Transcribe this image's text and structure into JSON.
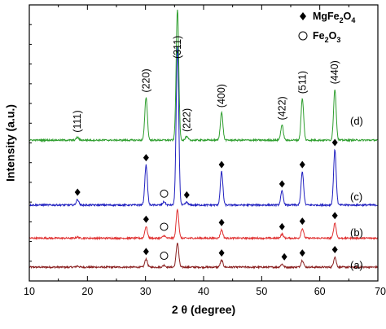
{
  "chart_data": {
    "type": "line",
    "xlabel": "2 θ (degree)",
    "ylabel": "Intensity (a.u.)",
    "xlim": [
      10,
      70
    ],
    "x_ticks": [
      "10",
      "20",
      "30",
      "40",
      "50",
      "60",
      "70"
    ],
    "grid": false,
    "legend": {
      "placement": "top-right",
      "items": [
        {
          "marker": "filled-diamond",
          "label": "MgFe",
          "sub1": "2",
          "mid": "O",
          "sub2": "4"
        },
        {
          "marker": "open-circle",
          "label": "Fe",
          "sub1": "2",
          "mid": "O",
          "sub2": "3"
        }
      ]
    },
    "series": [
      {
        "name": "(a)",
        "color": "#8a1f1f",
        "baseline": 0.05,
        "peaks": [
          {
            "x": 18.3,
            "h": 0.004
          },
          {
            "x": 30.1,
            "h": 0.03
          },
          {
            "x": 33.2,
            "h": 0.007
          },
          {
            "x": 35.5,
            "h": 0.088
          },
          {
            "x": 43.1,
            "h": 0.025
          },
          {
            "x": 53.5,
            "h": 0.011
          },
          {
            "x": 57.0,
            "h": 0.025
          },
          {
            "x": 62.6,
            "h": 0.037
          }
        ],
        "markers": [
          {
            "type": "diamond",
            "x": 30.1
          },
          {
            "type": "circle",
            "x": 33.2
          },
          {
            "type": "diamond",
            "x": 43.1
          },
          {
            "type": "diamond",
            "x": 53.9
          },
          {
            "type": "diamond",
            "x": 57.0
          },
          {
            "type": "diamond",
            "x": 62.6
          }
        ]
      },
      {
        "name": "(b)",
        "color": "#e03030",
        "baseline": 0.155,
        "peaks": [
          {
            "x": 18.3,
            "h": 0.004
          },
          {
            "x": 30.1,
            "h": 0.042
          },
          {
            "x": 33.2,
            "h": 0.009
          },
          {
            "x": 35.5,
            "h": 0.105
          },
          {
            "x": 43.1,
            "h": 0.03
          },
          {
            "x": 53.5,
            "h": 0.015
          },
          {
            "x": 57.0,
            "h": 0.035
          },
          {
            "x": 62.6,
            "h": 0.055
          }
        ],
        "markers": [
          {
            "type": "diamond",
            "x": 30.1
          },
          {
            "type": "circle",
            "x": 33.2
          },
          {
            "type": "diamond",
            "x": 43.1
          },
          {
            "type": "diamond",
            "x": 53.5
          },
          {
            "type": "diamond",
            "x": 57.0
          },
          {
            "type": "diamond",
            "x": 62.6
          }
        ]
      },
      {
        "name": "(c)",
        "color": "#2020c0",
        "baseline": 0.275,
        "peaks": [
          {
            "x": 18.3,
            "h": 0.02
          },
          {
            "x": 30.1,
            "h": 0.145
          },
          {
            "x": 33.2,
            "h": 0.012
          },
          {
            "x": 35.5,
            "h": 0.575
          },
          {
            "x": 37.1,
            "h": 0.01
          },
          {
            "x": 43.1,
            "h": 0.12
          },
          {
            "x": 53.5,
            "h": 0.05
          },
          {
            "x": 57.0,
            "h": 0.12
          },
          {
            "x": 62.6,
            "h": 0.2
          }
        ],
        "markers": [
          {
            "type": "diamond",
            "x": 18.3
          },
          {
            "type": "diamond",
            "x": 30.1
          },
          {
            "type": "circle",
            "x": 33.2
          },
          {
            "type": "diamond",
            "x": 37.1
          },
          {
            "type": "diamond",
            "x": 43.1
          },
          {
            "type": "diamond",
            "x": 53.5
          },
          {
            "type": "diamond",
            "x": 57.0
          },
          {
            "type": "diamond",
            "x": 62.6
          }
        ]
      },
      {
        "name": "(d)",
        "color": "#2e9e2e",
        "baseline": 0.51,
        "peaks": [
          {
            "x": 18.3,
            "h": 0.01
          },
          {
            "x": 30.1,
            "h": 0.155
          },
          {
            "x": 35.5,
            "h": 0.475
          },
          {
            "x": 37.1,
            "h": 0.012
          },
          {
            "x": 43.1,
            "h": 0.1
          },
          {
            "x": 53.5,
            "h": 0.055
          },
          {
            "x": 57.0,
            "h": 0.15
          },
          {
            "x": 62.6,
            "h": 0.185
          }
        ],
        "peak_labels": [
          {
            "text": "(111)",
            "x": 18.3
          },
          {
            "text": "(220)",
            "x": 30.1
          },
          {
            "text": "(311)",
            "x": 35.5
          },
          {
            "text": "(222)",
            "x": 37.1
          },
          {
            "text": "(400)",
            "x": 43.1
          },
          {
            "text": "(422)",
            "x": 53.5
          },
          {
            "text": "(511)",
            "x": 57.0
          },
          {
            "text": "(440)",
            "x": 62.6
          }
        ]
      }
    ]
  }
}
